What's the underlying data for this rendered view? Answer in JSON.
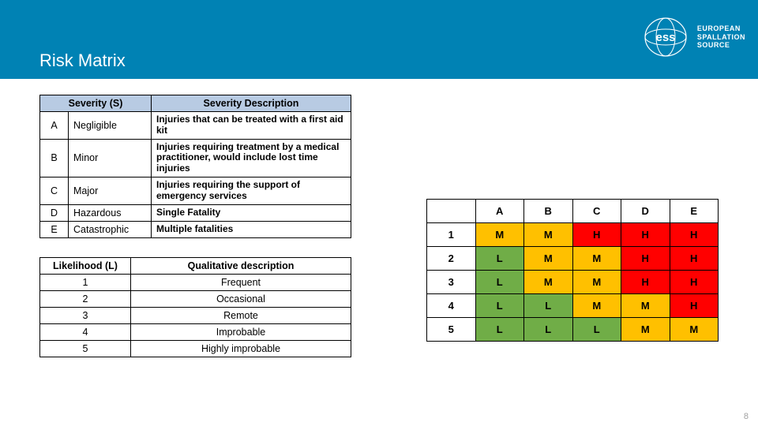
{
  "colors": {
    "header_bg": "#0082b4",
    "header_text": "#ffffff",
    "table_header_bg": "#b8cbe3",
    "cell_border": "#000000",
    "risk_L": "#70ad47",
    "risk_M": "#ffc000",
    "risk_H": "#ff0000"
  },
  "title": "Risk Matrix",
  "logo_text_lines": [
    "EUROPEAN",
    "SPALLATION",
    "SOURCE"
  ],
  "severity_table": {
    "col_headers": [
      "",
      "Severity (S)",
      "Severity Description"
    ],
    "rows": [
      {
        "code": "A",
        "name": "Negligible",
        "desc": "Injuries that can be treated with a first aid kit"
      },
      {
        "code": "B",
        "name": "Minor",
        "desc": "Injuries requiring treatment by a medical practitioner, would include lost time injuries"
      },
      {
        "code": "C",
        "name": "Major",
        "desc": "Injuries requiring the support of emergency services"
      },
      {
        "code": "D",
        "name": "Hazardous",
        "desc": "Single Fatality"
      },
      {
        "code": "E",
        "name": "Catastrophic",
        "desc": "Multiple fatalities"
      }
    ]
  },
  "likelihood_table": {
    "col_headers": [
      "Likelihood (L)",
      "Qualitative description"
    ],
    "rows": [
      {
        "code": "1",
        "desc": "Frequent"
      },
      {
        "code": "2",
        "desc": "Occasional"
      },
      {
        "code": "3",
        "desc": "Remote"
      },
      {
        "code": "4",
        "desc": "Improbable"
      },
      {
        "code": "5",
        "desc": "Highly improbable"
      }
    ]
  },
  "matrix": {
    "col_headers": [
      "A",
      "B",
      "C",
      "D",
      "E"
    ],
    "row_headers": [
      "1",
      "2",
      "3",
      "4",
      "5"
    ],
    "cells": [
      [
        "M",
        "M",
        "H",
        "H",
        "H"
      ],
      [
        "L",
        "M",
        "M",
        "H",
        "H"
      ],
      [
        "L",
        "M",
        "M",
        "H",
        "H"
      ],
      [
        "L",
        "L",
        "M",
        "M",
        "H"
      ],
      [
        "L",
        "L",
        "L",
        "M",
        "M"
      ]
    ],
    "level_colors": {
      "L": "#70ad47",
      "M": "#ffc000",
      "H": "#ff0000"
    }
  },
  "page_number": "8"
}
